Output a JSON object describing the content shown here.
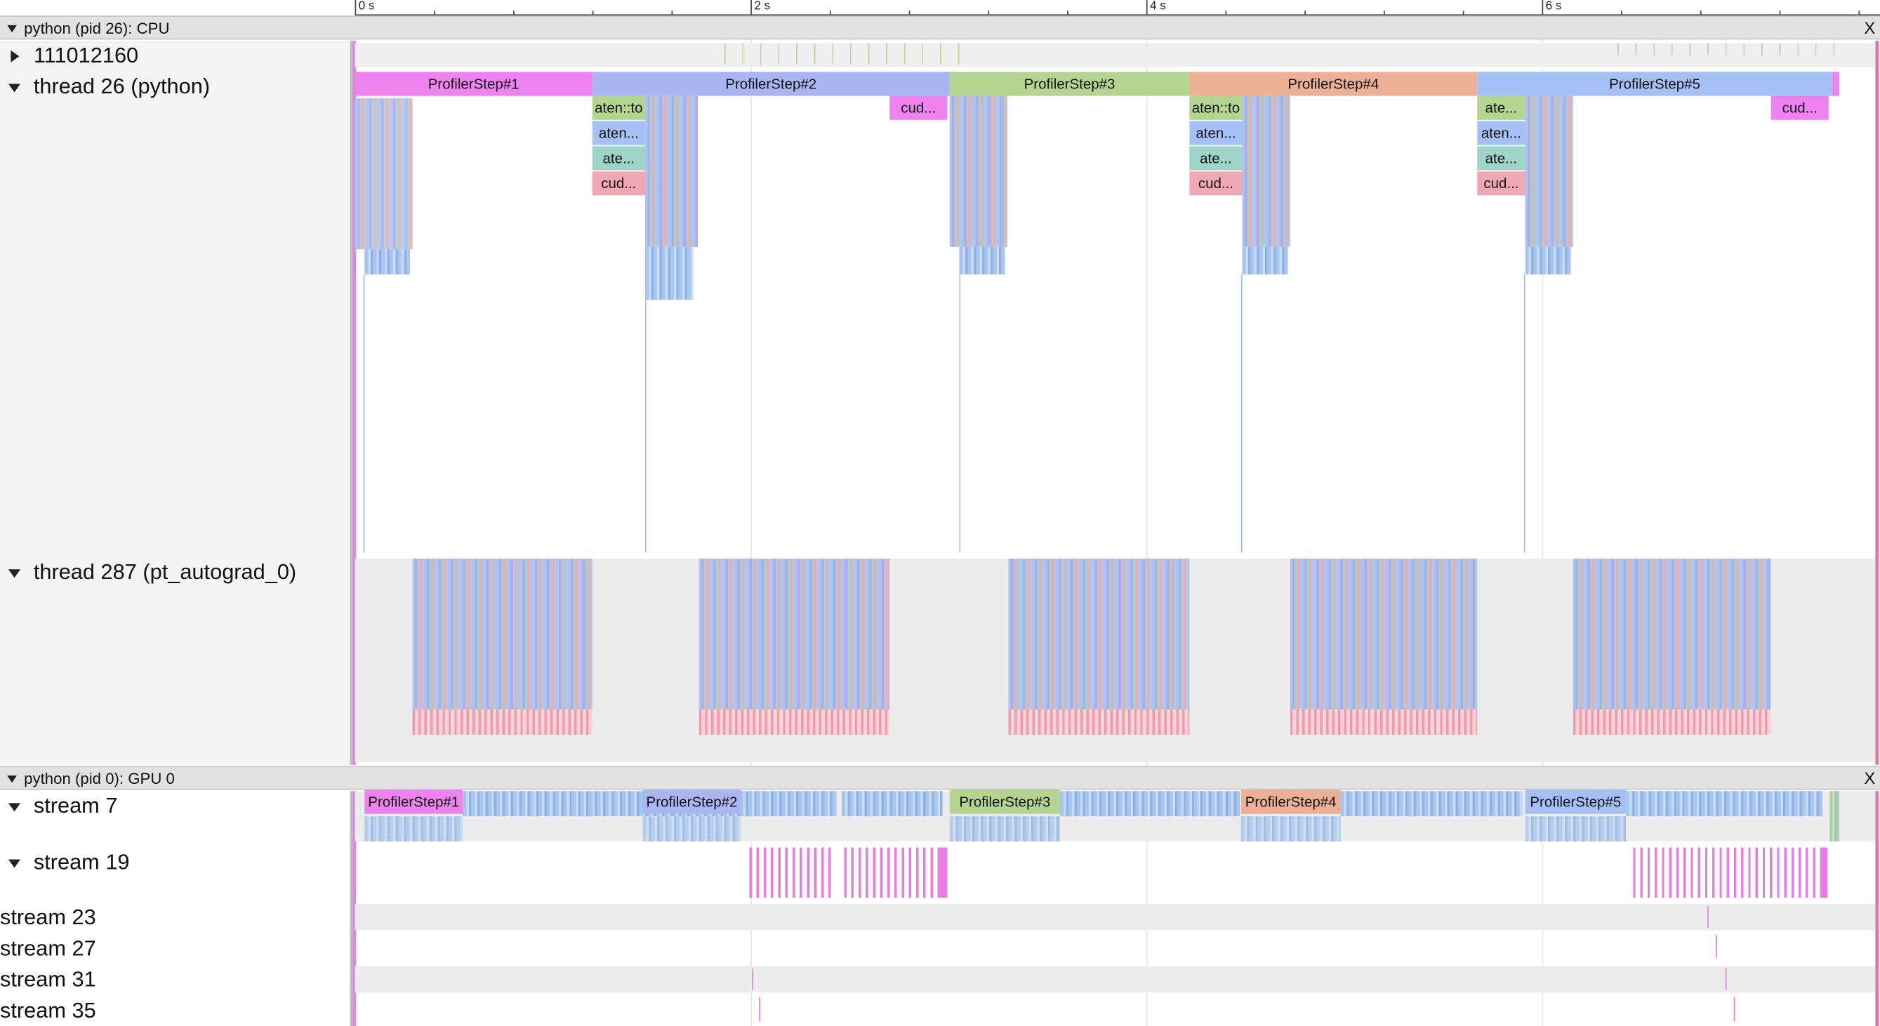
{
  "ruler": {
    "ticks": [
      "0 s",
      "2 s",
      "4 s",
      "6 s"
    ]
  },
  "cpu_process": {
    "title": "python (pid 26): CPU",
    "close_label": "X",
    "counter_track": {
      "label": "111012160"
    },
    "main_thread": {
      "label": "thread 26 (python)",
      "steps": [
        "ProfilerStep#1",
        "ProfilerStep#2",
        "ProfilerStep#3",
        "ProfilerStep#4",
        "ProfilerStep#5"
      ],
      "step_colors": [
        "#ee82ee",
        "#a9b6f1",
        "#b3d58f",
        "#eeb095",
        "#a5c0f5"
      ],
      "child_labels": {
        "cud": "cud...",
        "aten_to": "aten::to",
        "aten_long": "aten...",
        "ate": "ate..."
      }
    },
    "autograd_thread": {
      "label": "thread 287 (pt_autograd_0)"
    }
  },
  "gpu_process": {
    "title": "python (pid 0): GPU 0",
    "close_label": "X",
    "streams": [
      {
        "label": "stream 7"
      },
      {
        "label": "stream 19"
      },
      {
        "label": "stream 23"
      },
      {
        "label": "stream 27"
      },
      {
        "label": "stream 31"
      },
      {
        "label": "stream 35"
      }
    ],
    "steps": [
      "ProfilerStep#1",
      "ProfilerStep#2",
      "ProfilerStep#3",
      "ProfilerStep#4",
      "ProfilerStep#5"
    ]
  }
}
